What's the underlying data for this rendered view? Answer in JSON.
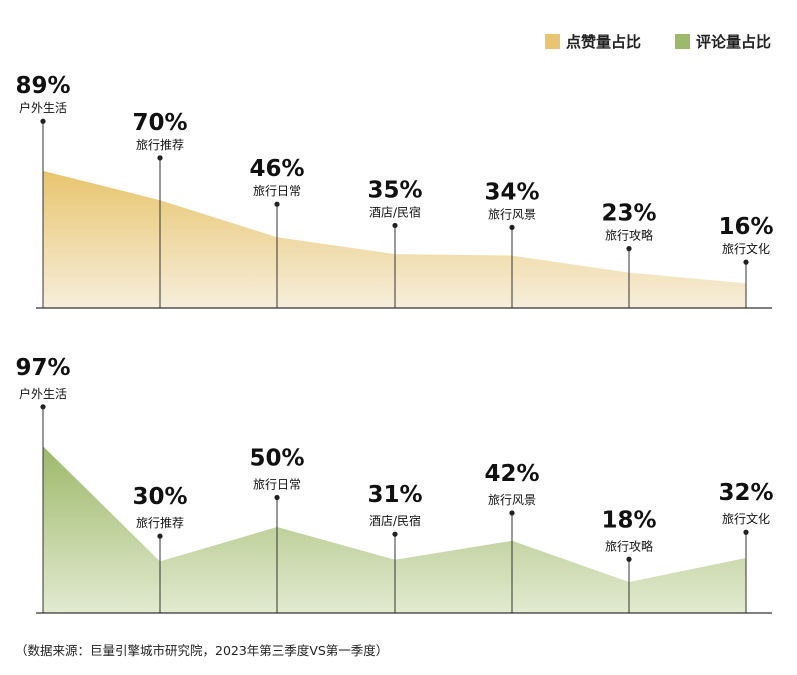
{
  "legend": {
    "likes_label": "点赞量占比",
    "comments_label": "评论量占比"
  },
  "colors": {
    "likes": "#E8C56E",
    "likes_fade": "#F7EEDB",
    "comments": "#9DB96A",
    "comments_fade": "#E2EAD0",
    "axis": "#333333"
  },
  "source_note": "（数据来源：巨量引擎城市研究院，2023年第三季度VS第一季度）",
  "chart_data": [
    {
      "type": "area",
      "series_name": "点赞量占比",
      "categories": [
        "户外生活",
        "旅行推荐",
        "旅行日常",
        "酒店/民宿",
        "旅行风景",
        "旅行攻略",
        "旅行文化"
      ],
      "values": [
        89,
        70,
        46,
        35,
        34,
        23,
        16
      ],
      "value_labels": [
        "89%",
        "70%",
        "46%",
        "35%",
        "34%",
        "23%",
        "16%"
      ],
      "ylim": [
        0,
        100
      ]
    },
    {
      "type": "area",
      "series_name": "评论量占比",
      "categories": [
        "户外生活",
        "旅行推荐",
        "旅行日常",
        "酒店/民宿",
        "旅行风景",
        "旅行攻略",
        "旅行文化"
      ],
      "values": [
        97,
        30,
        50,
        31,
        42,
        18,
        32
      ],
      "value_labels": [
        "97%",
        "30%",
        "50%",
        "31%",
        "42%",
        "18%",
        "32%"
      ],
      "ylim": [
        0,
        100
      ]
    }
  ]
}
